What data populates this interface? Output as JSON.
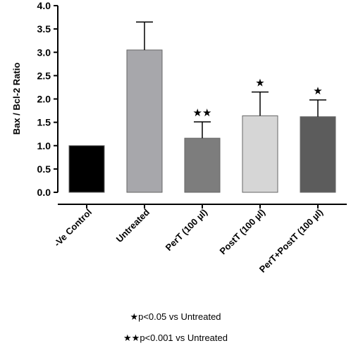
{
  "chart_data": {
    "type": "bar",
    "title": "",
    "xlabel": "",
    "ylabel": "Bax / Bcl-2 Ratio",
    "ylim": [
      0,
      4.0
    ],
    "yticks": [
      "0.0",
      "0.5",
      "1.0",
      "1.5",
      "2.0",
      "2.5",
      "3.0",
      "3.5",
      "4.0"
    ],
    "categories": [
      "-Ve Control",
      "Untreated",
      "PerT (100  µl)",
      "PostT (100  µl)",
      "PerT+PostT (100  µl)"
    ],
    "values": [
      1.0,
      3.05,
      1.16,
      1.64,
      1.62
    ],
    "errors": [
      0,
      0.6,
      0.35,
      0.51,
      0.36
    ],
    "colors": [
      "#000000",
      "#a7a7ab",
      "#7d7d7d",
      "#d6d6d6",
      "#5c5c5c"
    ],
    "significance": [
      "",
      "",
      "★★",
      "★",
      "★"
    ],
    "legend": [
      {
        "symbol": "★",
        "text": "p<0.05 vs Untreated"
      },
      {
        "symbol": "★★",
        "text": "p<0.001 vs Untreated"
      }
    ],
    "grid": false
  }
}
